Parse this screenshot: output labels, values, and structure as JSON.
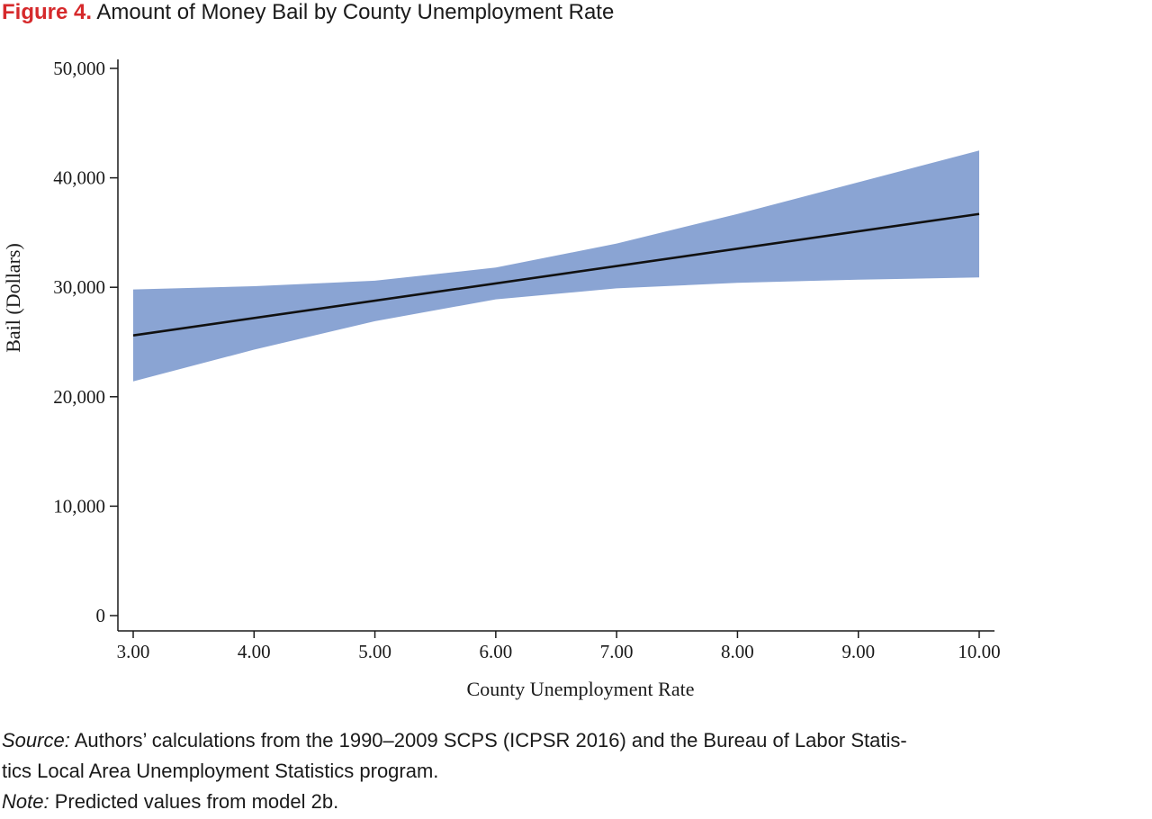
{
  "figure": {
    "label": "Figure 4.",
    "title": "Amount of Money Bail by County Unemployment Rate"
  },
  "chart_data": {
    "type": "line",
    "xlabel": "County Unemployment Rate",
    "ylabel": "Bail (Dollars)",
    "xlim": [
      3,
      10
    ],
    "ylim": [
      0,
      50000
    ],
    "x_ticks": [
      "3.00",
      "4.00",
      "5.00",
      "6.00",
      "7.00",
      "8.00",
      "9.00",
      "10.00"
    ],
    "y_ticks": [
      "0",
      "10,000",
      "20,000",
      "30,000",
      "40,000",
      "50,000"
    ],
    "line": {
      "x": [
        3,
        10
      ],
      "y": [
        25600,
        36700
      ]
    },
    "band": {
      "x": [
        3,
        4,
        5,
        6,
        7,
        8,
        9,
        10
      ],
      "upper": [
        29800,
        30100,
        30600,
        31800,
        34000,
        36700,
        39600,
        42500
      ],
      "lower": [
        21400,
        24300,
        26900,
        28900,
        29900,
        30400,
        30700,
        30900
      ]
    },
    "colors": {
      "band": "#8aa4d3",
      "line": "#111111"
    },
    "grid": false,
    "legend": "none"
  },
  "source": {
    "label": "Source:",
    "line1": " Authors’ calculations from the 1990–2009 SCPS (ICPSR 2016) and the Bureau of Labor Statis-",
    "line2": "tics Local Area Unemployment Statistics program."
  },
  "note": {
    "label": "Note:",
    "text": " Predicted values from model 2b."
  }
}
